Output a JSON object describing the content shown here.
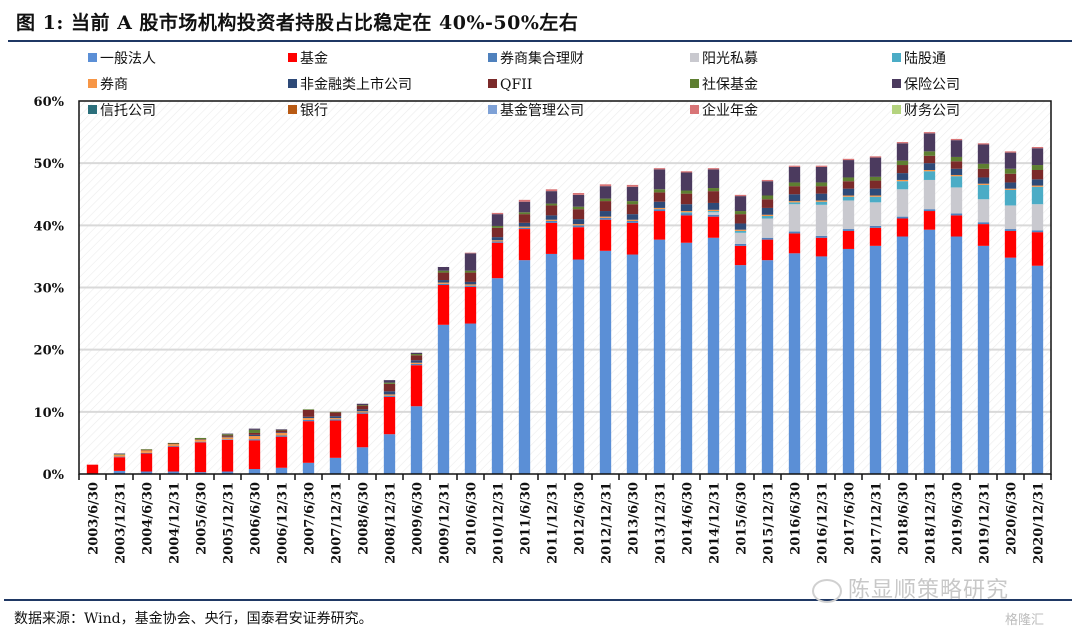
{
  "title": "图 1:  当前 A 股市场机构投资者持股占比稳定在 40%-50%左右",
  "source": "数据来源：Wind，基金协会、央行，国泰君安证券研究。",
  "watermark": "陈显顺策略研究",
  "logo": "格隆汇",
  "chart_data": {
    "type": "bar",
    "stacked": true,
    "title": "当前 A 股市场机构投资者持股占比稳定在 40%-50%左右",
    "xlabel": "",
    "ylabel": "",
    "ylim": [
      0,
      60
    ],
    "yticks": [
      "0%",
      "10%",
      "20%",
      "30%",
      "40%",
      "50%",
      "60%"
    ],
    "grid": true,
    "legend_position": "top",
    "categories": [
      "2003/6/30",
      "2003/12/31",
      "2004/6/30",
      "2004/12/31",
      "2005/6/30",
      "2005/12/31",
      "2006/6/30",
      "2006/12/31",
      "2007/6/30",
      "2007/12/31",
      "2008/6/30",
      "2008/12/31",
      "2009/6/30",
      "2009/12/31",
      "2010/6/30",
      "2010/12/31",
      "2011/6/30",
      "2011/12/31",
      "2012/6/30",
      "2012/12/31",
      "2013/6/30",
      "2013/12/31",
      "2014/6/30",
      "2014/12/31",
      "2015/6/30",
      "2015/12/31",
      "2016/6/30",
      "2016/12/31",
      "2017/6/30",
      "2017/12/31",
      "2018/6/30",
      "2018/12/31",
      "2019/6/30",
      "2019/12/31",
      "2020/6/30",
      "2020/12/31"
    ],
    "series": [
      {
        "name": "一般法人",
        "color": "#5b8fd6",
        "values": [
          0,
          0.5,
          0.4,
          0.4,
          0.3,
          0.4,
          0.8,
          1.0,
          1.8,
          2.6,
          4.3,
          6.4,
          10.9,
          24.0,
          24.2,
          31.5,
          34.4,
          35.4,
          34.5,
          35.9,
          35.3,
          37.7,
          37.2,
          38.0,
          33.6,
          34.4,
          35.5,
          35.0,
          36.2,
          36.7,
          38.2,
          39.3,
          38.2,
          36.7,
          34.8,
          33.5
        ]
      },
      {
        "name": "基金",
        "color": "#ff0000",
        "values": [
          1.5,
          2.2,
          2.9,
          4.0,
          4.8,
          5.1,
          4.6,
          5.0,
          6.7,
          6.0,
          5.4,
          6.0,
          6.6,
          6.4,
          5.9,
          5.7,
          5.0,
          5.0,
          5.2,
          5.0,
          5.1,
          4.6,
          4.4,
          3.4,
          3.1,
          3.3,
          3.2,
          3.0,
          2.9,
          2.9,
          2.9,
          3.0,
          3.4,
          3.5,
          4.3,
          5.4
        ]
      },
      {
        "name": "券商集合理财",
        "color": "#4f81bd",
        "values": [
          0,
          0.1,
          0.1,
          0.1,
          0.1,
          0.1,
          0.2,
          0.2,
          0.2,
          0.2,
          0.2,
          0.2,
          0.2,
          0.2,
          0.2,
          0.2,
          0.2,
          0.3,
          0.3,
          0.3,
          0.3,
          0.3,
          0.3,
          0.3,
          0.3,
          0.3,
          0.3,
          0.3,
          0.3,
          0.3,
          0.3,
          0.3,
          0.3,
          0.3,
          0.3,
          0.3
        ]
      },
      {
        "name": "阳光私募",
        "color": "#c9c9cf",
        "values": [
          0,
          0,
          0,
          0,
          0,
          0,
          0,
          0,
          0,
          0,
          0,
          0,
          0,
          0,
          0,
          0,
          0,
          0,
          0,
          0,
          0,
          0,
          0,
          0.4,
          1.8,
          3.1,
          4.4,
          5.0,
          4.6,
          3.8,
          4.4,
          4.7,
          4.2,
          3.7,
          3.8,
          4.2
        ]
      },
      {
        "name": "陆股通",
        "color": "#4bacc6",
        "values": [
          0,
          0,
          0,
          0,
          0,
          0,
          0,
          0,
          0,
          0,
          0,
          0,
          0,
          0,
          0,
          0,
          0,
          0,
          0,
          0,
          0,
          0,
          0.2,
          0.2,
          0.3,
          0.4,
          0.3,
          0.5,
          0.6,
          0.9,
          1.3,
          1.4,
          1.8,
          2.3,
          2.5,
          2.8
        ]
      },
      {
        "name": "券商",
        "color": "#f79646",
        "values": [
          0,
          0.3,
          0.4,
          0.3,
          0.3,
          0.3,
          0.5,
          0.4,
          0.3,
          0.2,
          0.2,
          0.2,
          0.2,
          0.2,
          0.2,
          0.2,
          0.2,
          0.2,
          0.2,
          0.2,
          0.2,
          0.2,
          0.2,
          0.2,
          0.2,
          0.2,
          0.2,
          0.2,
          0.2,
          0.2,
          0.2,
          0.2,
          0.2,
          0.2,
          0.2,
          0.2
        ]
      },
      {
        "name": "非金融类上市公司",
        "color": "#2e4a78",
        "values": [
          0,
          0,
          0,
          0,
          0,
          0.1,
          0.2,
          0.1,
          0.2,
          0.3,
          0.3,
          0.5,
          0.4,
          0.4,
          0.4,
          0.5,
          0.6,
          0.7,
          0.8,
          0.9,
          0.9,
          1.0,
          1.1,
          1.1,
          1.0,
          1.1,
          1.1,
          1.1,
          1.1,
          1.1,
          1.1,
          1.1,
          1.0,
          1.0,
          1.0,
          1.0
        ]
      },
      {
        "name": "QFII",
        "color": "#7b2a2a",
        "values": [
          0,
          0,
          0.1,
          0.1,
          0.1,
          0.2,
          0.3,
          0.3,
          1.1,
          0.6,
          0.6,
          1.2,
          0.8,
          1.2,
          1.5,
          1.5,
          1.4,
          1.6,
          1.6,
          1.6,
          1.6,
          1.5,
          1.7,
          1.9,
          1.5,
          1.4,
          1.3,
          1.2,
          1.2,
          1.3,
          1.3,
          1.2,
          1.2,
          1.4,
          1.4,
          1.5
        ]
      },
      {
        "name": "社保基金",
        "color": "#5e7f31",
        "values": [
          0,
          0.1,
          0.1,
          0.1,
          0.2,
          0.2,
          0.5,
          0.1,
          0.1,
          0.1,
          0.1,
          0.2,
          0.2,
          0.3,
          0.3,
          0.3,
          0.3,
          0.3,
          0.4,
          0.4,
          0.5,
          0.5,
          0.5,
          0.5,
          0.5,
          0.6,
          0.6,
          0.6,
          0.6,
          0.6,
          0.7,
          0.7,
          0.7,
          0.8,
          0.8,
          0.8
        ]
      },
      {
        "name": "保险公司",
        "color": "#4b3a5e",
        "values": [
          0,
          0.1,
          0.0,
          0.0,
          0.0,
          0.1,
          0.2,
          0.1,
          0.0,
          0.0,
          0.2,
          0.4,
          0.2,
          0.6,
          2.8,
          1.9,
          1.7,
          2.0,
          1.9,
          2.0,
          2.3,
          3.2,
          2.9,
          3.0,
          2.4,
          2.3,
          2.5,
          2.5,
          2.8,
          3.1,
          2.8,
          2.9,
          2.7,
          3.1,
          2.6,
          2.7
        ]
      },
      {
        "name": "信托公司",
        "color": "#2b6f7b",
        "values": [
          0,
          0,
          0,
          0,
          0,
          0,
          0,
          0,
          0,
          0,
          0,
          0,
          0,
          0,
          0,
          0,
          0,
          0,
          0,
          0,
          0,
          0,
          0,
          0,
          0,
          0,
          0,
          0,
          0,
          0,
          0,
          0,
          0,
          0,
          0,
          0
        ]
      },
      {
        "name": "银行",
        "color": "#b85a14",
        "values": [
          0,
          0,
          0,
          0,
          0,
          0,
          0,
          0,
          0,
          0,
          0,
          0,
          0,
          0,
          0,
          0,
          0,
          0,
          0,
          0,
          0,
          0,
          0,
          0,
          0,
          0,
          0,
          0,
          0,
          0,
          0,
          0,
          0,
          0,
          0,
          0
        ]
      },
      {
        "name": "基金管理公司",
        "color": "#7ea1d6",
        "values": [
          0,
          0,
          0,
          0,
          0,
          0,
          0,
          0,
          0,
          0,
          0,
          0,
          0,
          0,
          0,
          0,
          0,
          0,
          0,
          0,
          0,
          0,
          0,
          0,
          0,
          0,
          0,
          0,
          0,
          0,
          0,
          0,
          0,
          0,
          0,
          0
        ]
      },
      {
        "name": "企业年金",
        "color": "#d87476",
        "values": [
          0,
          0,
          0,
          0,
          0,
          0,
          0,
          0,
          0,
          0,
          0,
          0,
          0,
          0,
          0.1,
          0.2,
          0.3,
          0.3,
          0.3,
          0.3,
          0.3,
          0.2,
          0.2,
          0.2,
          0.2,
          0.2,
          0.2,
          0.2,
          0.2,
          0.2,
          0.2,
          0.2,
          0.2,
          0.2,
          0.2,
          0.2
        ]
      },
      {
        "name": "财务公司",
        "color": "#b4d37e",
        "values": [
          0,
          0,
          0,
          0,
          0,
          0,
          0,
          0,
          0,
          0,
          0,
          0,
          0,
          0,
          0,
          0,
          0,
          0,
          0,
          0,
          0,
          0,
          0,
          0,
          0,
          0,
          0,
          0,
          0,
          0,
          0,
          0,
          0,
          0,
          0,
          0
        ]
      }
    ],
    "legend_order": [
      "一般法人",
      "基金",
      "券商集合理财",
      "阳光私募",
      "陆股通",
      "券商",
      "非金融类上市公司",
      "QFII",
      "社保基金",
      "保险公司",
      "信托公司",
      "银行",
      "基金管理公司",
      "企业年金",
      "财务公司"
    ]
  }
}
